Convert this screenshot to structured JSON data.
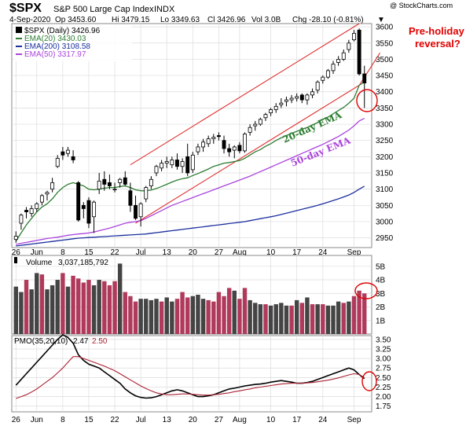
{
  "header": {
    "symbol": "$SPX",
    "name": "S&P 500 Large Cap Index",
    "exchange": "INDX",
    "watermark": "@ StockCharts.com",
    "date": "4-Sep-2020",
    "open": "Op 3453.60",
    "high": "Hi 3479.15",
    "low": "Lo 3349.63",
    "close": "Cl 3426.96",
    "volume": "Vol 3.0B",
    "change": "Chg -28.10 (-0.81%)",
    "change_symbol": "▼"
  },
  "legend": {
    "price": "$SPX (Daily) 3426.96",
    "ema20": "EMA(20) 3430.03",
    "ema200": "EMA(200) 3108.58",
    "ema50": "EMA(50) 3317.97"
  },
  "annotations": {
    "pre_holiday_line1": "Pre-holiday",
    "pre_holiday_line2": "reversal?",
    "ema20_label": "20-day EMA",
    "ema50_label": "50-day EMA"
  },
  "volume_legend": {
    "label": "Volume",
    "value": "3,037,185,792"
  },
  "pmo_legend": {
    "label": "PMO(35,20,10)",
    "value1": "2.47",
    "value2": "2.50"
  },
  "colors": {
    "up_volume": "#444444",
    "down_volume": "#b03a5b",
    "ema20": "#2e7d32",
    "ema50": "#aa44dd",
    "ema200": "#1c2f9e",
    "channel": "#e03030",
    "annotation": "#e00000",
    "pmo": "#000000",
    "pmo_signal": "#aa2233"
  },
  "chart_data": [
    {
      "type": "candlestick",
      "title": "$SPX S&P 500 Large Cap Index INDX",
      "ylim": [
        2920,
        3610
      ],
      "yticks": [
        2950,
        3000,
        3050,
        3100,
        3150,
        3200,
        3250,
        3300,
        3350,
        3400,
        3450,
        3500,
        3550,
        3600
      ],
      "x_tick_labels": [
        {
          "label": "26",
          "day": 0
        },
        {
          "label": "Jun",
          "day": 4
        },
        {
          "label": "8",
          "day": 9
        },
        {
          "label": "15",
          "day": 14
        },
        {
          "label": "22",
          "day": 19
        },
        {
          "label": "Jul",
          "day": 24
        },
        {
          "label": "13",
          "day": 29
        },
        {
          "label": "20",
          "day": 34
        },
        {
          "label": "27",
          "day": 39
        },
        {
          "label": "Aug",
          "day": 43
        },
        {
          "label": "10",
          "day": 49
        },
        {
          "label": "17",
          "day": 54
        },
        {
          "label": "24",
          "day": 59
        },
        {
          "label": "Sep",
          "day": 65
        }
      ],
      "candles": [
        {
          "o": 2945,
          "h": 2970,
          "l": 2935,
          "c": 2955
        },
        {
          "o": 2995,
          "h": 3025,
          "l": 2975,
          "c": 3020
        },
        {
          "o": 3035,
          "h": 3045,
          "l": 3010,
          "c": 3030
        },
        {
          "o": 3025,
          "h": 3050,
          "l": 3015,
          "c": 3040
        },
        {
          "o": 3040,
          "h": 3060,
          "l": 3030,
          "c": 3055
        },
        {
          "o": 3060,
          "h": 3085,
          "l": 3050,
          "c": 3080
        },
        {
          "o": 3085,
          "h": 3095,
          "l": 3065,
          "c": 3090
        },
        {
          "o": 3100,
          "h": 3135,
          "l": 3090,
          "c": 3120
        },
        {
          "o": 3170,
          "h": 3205,
          "l": 3165,
          "c": 3195
        },
        {
          "o": 3215,
          "h": 3230,
          "l": 3190,
          "c": 3205
        },
        {
          "o": 3210,
          "h": 3230,
          "l": 3200,
          "c": 3220
        },
        {
          "o": 3200,
          "h": 3220,
          "l": 3180,
          "c": 3190
        },
        {
          "o": 3120,
          "h": 3125,
          "l": 3000,
          "c": 3005
        },
        {
          "o": 3050,
          "h": 3060,
          "l": 3010,
          "c": 3040
        },
        {
          "o": 3065,
          "h": 3075,
          "l": 2980,
          "c": 2995
        },
        {
          "o": 3015,
          "h": 3065,
          "l": 2965,
          "c": 3060
        },
        {
          "o": 3100,
          "h": 3150,
          "l": 3085,
          "c": 3125
        },
        {
          "o": 3130,
          "h": 3155,
          "l": 3095,
          "c": 3115
        },
        {
          "o": 3120,
          "h": 3145,
          "l": 3100,
          "c": 3110
        },
        {
          "o": 3100,
          "h": 3120,
          "l": 3090,
          "c": 3100
        },
        {
          "o": 3120,
          "h": 3135,
          "l": 3105,
          "c": 3130
        },
        {
          "o": 3135,
          "h": 3155,
          "l": 3110,
          "c": 3115
        },
        {
          "o": 3095,
          "h": 3120,
          "l": 3030,
          "c": 3050
        },
        {
          "o": 3050,
          "h": 3080,
          "l": 3005,
          "c": 3010
        },
        {
          "o": 3015,
          "h": 3060,
          "l": 2985,
          "c": 3055
        },
        {
          "o": 3070,
          "h": 3110,
          "l": 3060,
          "c": 3105
        },
        {
          "o": 3110,
          "h": 3140,
          "l": 3100,
          "c": 3130
        },
        {
          "o": 3150,
          "h": 3175,
          "l": 3140,
          "c": 3170
        },
        {
          "o": 3165,
          "h": 3190,
          "l": 3155,
          "c": 3180
        },
        {
          "o": 3180,
          "h": 3200,
          "l": 3165,
          "c": 3185
        },
        {
          "o": 3175,
          "h": 3200,
          "l": 3165,
          "c": 3190
        },
        {
          "o": 3190,
          "h": 3210,
          "l": 3160,
          "c": 3170
        },
        {
          "o": 3170,
          "h": 3195,
          "l": 3150,
          "c": 3185
        },
        {
          "o": 3200,
          "h": 3240,
          "l": 3140,
          "c": 3150
        },
        {
          "o": 3160,
          "h": 3215,
          "l": 3150,
          "c": 3205
        },
        {
          "o": 3215,
          "h": 3240,
          "l": 3205,
          "c": 3230
        },
        {
          "o": 3230,
          "h": 3255,
          "l": 3215,
          "c": 3245
        },
        {
          "o": 3240,
          "h": 3265,
          "l": 3230,
          "c": 3255
        },
        {
          "o": 3255,
          "h": 3270,
          "l": 3240,
          "c": 3260
        },
        {
          "o": 3265,
          "h": 3275,
          "l": 3250,
          "c": 3262
        },
        {
          "o": 3250,
          "h": 3265,
          "l": 3210,
          "c": 3225
        },
        {
          "o": 3225,
          "h": 3240,
          "l": 3200,
          "c": 3215
        },
        {
          "o": 3220,
          "h": 3235,
          "l": 3195,
          "c": 3230
        },
        {
          "o": 3235,
          "h": 3245,
          "l": 3210,
          "c": 3218
        },
        {
          "o": 3218,
          "h": 3275,
          "l": 3212,
          "c": 3270
        },
        {
          "o": 3275,
          "h": 3300,
          "l": 3265,
          "c": 3290
        },
        {
          "o": 3295,
          "h": 3310,
          "l": 3280,
          "c": 3300
        },
        {
          "o": 3300,
          "h": 3320,
          "l": 3295,
          "c": 3315
        },
        {
          "o": 3320,
          "h": 3335,
          "l": 3310,
          "c": 3330
        },
        {
          "o": 3335,
          "h": 3350,
          "l": 3325,
          "c": 3345
        },
        {
          "o": 3345,
          "h": 3365,
          "l": 3335,
          "c": 3355
        },
        {
          "o": 3360,
          "h": 3380,
          "l": 3350,
          "c": 3365
        },
        {
          "o": 3370,
          "h": 3385,
          "l": 3355,
          "c": 3375
        },
        {
          "o": 3375,
          "h": 3390,
          "l": 3365,
          "c": 3380
        },
        {
          "o": 3380,
          "h": 3395,
          "l": 3370,
          "c": 3385
        },
        {
          "o": 3390,
          "h": 3395,
          "l": 3365,
          "c": 3375
        },
        {
          "o": 3375,
          "h": 3395,
          "l": 3360,
          "c": 3390
        },
        {
          "o": 3390,
          "h": 3410,
          "l": 3380,
          "c": 3400
        },
        {
          "o": 3405,
          "h": 3435,
          "l": 3395,
          "c": 3430
        },
        {
          "o": 3435,
          "h": 3450,
          "l": 3425,
          "c": 3445
        },
        {
          "o": 3445,
          "h": 3470,
          "l": 3440,
          "c": 3465
        },
        {
          "o": 3465,
          "h": 3495,
          "l": 3455,
          "c": 3485
        },
        {
          "o": 3490,
          "h": 3510,
          "l": 3480,
          "c": 3500
        },
        {
          "o": 3500,
          "h": 3530,
          "l": 3495,
          "c": 3520
        },
        {
          "o": 3530,
          "h": 3560,
          "l": 3520,
          "c": 3550
        },
        {
          "o": 3560,
          "h": 3590,
          "l": 3555,
          "c": 3580
        },
        {
          "o": 3590,
          "h": 3595,
          "l": 3450,
          "c": 3455
        },
        {
          "o": 3455,
          "h": 3480,
          "l": 3350,
          "c": 3427
        }
      ],
      "ema20": [
        2940,
        2965,
        2990,
        3010,
        3030,
        3045,
        3055,
        3070,
        3090,
        3105,
        3115,
        3120,
        3115,
        3110,
        3100,
        3098,
        3100,
        3103,
        3105,
        3105,
        3108,
        3110,
        3105,
        3098,
        3095,
        3095,
        3097,
        3102,
        3108,
        3115,
        3122,
        3128,
        3132,
        3135,
        3142,
        3148,
        3155,
        3162,
        3170,
        3175,
        3180,
        3182,
        3185,
        3188,
        3195,
        3205,
        3215,
        3222,
        3232,
        3240,
        3250,
        3258,
        3265,
        3272,
        3278,
        3285,
        3290,
        3298,
        3305,
        3315,
        3322,
        3332,
        3342,
        3352,
        3365,
        3380,
        3420,
        3430
      ],
      "ema50": [
        2930,
        2933,
        2936,
        2939,
        2942,
        2945,
        2948,
        2950,
        2952,
        2955,
        2958,
        2960,
        2962,
        2963,
        2965,
        2968,
        2972,
        2976,
        2980,
        2985,
        2990,
        2995,
        2998,
        3000,
        3003,
        3010,
        3018,
        3026,
        3034,
        3042,
        3050,
        3056,
        3062,
        3068,
        3074,
        3080,
        3086,
        3092,
        3098,
        3104,
        3110,
        3116,
        3122,
        3128,
        3134,
        3140,
        3147,
        3154,
        3161,
        3168,
        3175,
        3182,
        3189,
        3196,
        3203,
        3210,
        3217,
        3224,
        3231,
        3238,
        3246,
        3254,
        3262,
        3272,
        3282,
        3295,
        3310,
        3318
      ],
      "ema200": [
        2925,
        2927,
        2929,
        2931,
        2933,
        2935,
        2937,
        2939,
        2941,
        2943,
        2945,
        2947,
        2949,
        2950,
        2951,
        2952,
        2953,
        2954,
        2955,
        2956,
        2957,
        2958,
        2959,
        2960,
        2961,
        2962,
        2964,
        2966,
        2968,
        2970,
        2972,
        2974,
        2976,
        2978,
        2980,
        2982,
        2984,
        2986,
        2988,
        2990,
        2992,
        2994,
        2996,
        2998,
        3000,
        3003,
        3006,
        3009,
        3012,
        3015,
        3018,
        3022,
        3026,
        3030,
        3034,
        3038,
        3042,
        3046,
        3050,
        3055,
        3060,
        3065,
        3070,
        3076,
        3082,
        3090,
        3100,
        3109
      ],
      "channel_upper": [
        {
          "day": 22,
          "price": 3175
        },
        {
          "day": 66,
          "price": 3610
        }
      ],
      "channel_lower": [
        {
          "day": 23,
          "price": 2995
        },
        {
          "day": 66,
          "price": 3420
        },
        {
          "day": 70,
          "price": 3520
        }
      ]
    },
    {
      "type": "bar",
      "title": "Volume",
      "ylabel": "",
      "ylim": [
        0,
        5.8
      ],
      "units": "B",
      "yticks": [
        {
          "value": 1,
          "label": "1B"
        },
        {
          "value": 2,
          "label": "2B"
        },
        {
          "value": 3,
          "label": "3B"
        },
        {
          "value": 4,
          "label": "4B"
        },
        {
          "value": 5,
          "label": "5B"
        }
      ],
      "values": [
        3.5,
        3.1,
        4.0,
        3.3,
        4.5,
        4.4,
        3.3,
        3.6,
        4.0,
        4.5,
        3.5,
        4.3,
        4.1,
        3.8,
        4.0,
        3.6,
        4.0,
        3.9,
        3.6,
        3.9,
        5.2,
        3.1,
        2.8,
        2.4,
        2.6,
        2.6,
        2.5,
        2.6,
        2.4,
        2.7,
        2.4,
        2.6,
        3.1,
        2.7,
        2.8,
        2.9,
        2.6,
        2.5,
        2.4,
        3.1,
        2.8,
        3.4,
        3.2,
        2.6,
        3.4,
        2.5,
        2.3,
        2.2,
        2.2,
        2.1,
        2.2,
        2.3,
        2.1,
        2.1,
        2.5,
        2.3,
        2.7,
        2.2,
        2.2,
        2.2,
        2.1,
        2.1,
        2.4,
        2.3,
        2.4,
        2.8,
        3.2,
        3.0
      ],
      "down_days": [
        2,
        5,
        9,
        11,
        12,
        13,
        14,
        17,
        18,
        19,
        21,
        22,
        23,
        28,
        31,
        32,
        33,
        37,
        38,
        39,
        40,
        41,
        43,
        44,
        48,
        53,
        55,
        57,
        59,
        63,
        65,
        66,
        67
      ]
    },
    {
      "type": "line",
      "title": "PMO(35,20,10)",
      "ylim": [
        1.6,
        3.6
      ],
      "yticks": [
        1.75,
        2.0,
        2.25,
        2.5,
        2.75,
        3.0,
        3.25,
        3.5
      ],
      "series": [
        {
          "name": "PMO(35,20,10)",
          "values": [
            2.3,
            2.45,
            2.6,
            2.75,
            2.9,
            3.05,
            3.2,
            3.35,
            3.5,
            3.62,
            3.55,
            3.4,
            3.1,
            2.95,
            2.85,
            2.8,
            2.75,
            2.65,
            2.55,
            2.45,
            2.35,
            2.2,
            2.1,
            2.02,
            1.98,
            1.96,
            1.97,
            2.0,
            2.05,
            2.1,
            2.15,
            2.18,
            2.15,
            2.1,
            2.05,
            2.0,
            2.0,
            2.02,
            2.05,
            2.1,
            2.15,
            2.2,
            2.22,
            2.25,
            2.28,
            2.3,
            2.32,
            2.33,
            2.35,
            2.38,
            2.4,
            2.42,
            2.4,
            2.38,
            2.35,
            2.35,
            2.37,
            2.4,
            2.45,
            2.5,
            2.55,
            2.6,
            2.65,
            2.7,
            2.75,
            2.7,
            2.58,
            2.47
          ]
        },
        {
          "name": "signal",
          "values": [
            1.95,
            2.0,
            2.05,
            2.12,
            2.2,
            2.3,
            2.4,
            2.5,
            2.62,
            2.75,
            2.9,
            3.05,
            3.05,
            3.0,
            2.95,
            2.9,
            2.85,
            2.8,
            2.74,
            2.68,
            2.6,
            2.52,
            2.44,
            2.36,
            2.28,
            2.21,
            2.15,
            2.1,
            2.07,
            2.05,
            2.05,
            2.06,
            2.07,
            2.07,
            2.06,
            2.05,
            2.04,
            2.04,
            2.05,
            2.06,
            2.08,
            2.1,
            2.13,
            2.15,
            2.18,
            2.2,
            2.23,
            2.25,
            2.27,
            2.29,
            2.31,
            2.33,
            2.34,
            2.35,
            2.35,
            2.35,
            2.36,
            2.37,
            2.39,
            2.41,
            2.43,
            2.46,
            2.49,
            2.53,
            2.57,
            2.6,
            2.58,
            2.5
          ]
        }
      ]
    }
  ]
}
